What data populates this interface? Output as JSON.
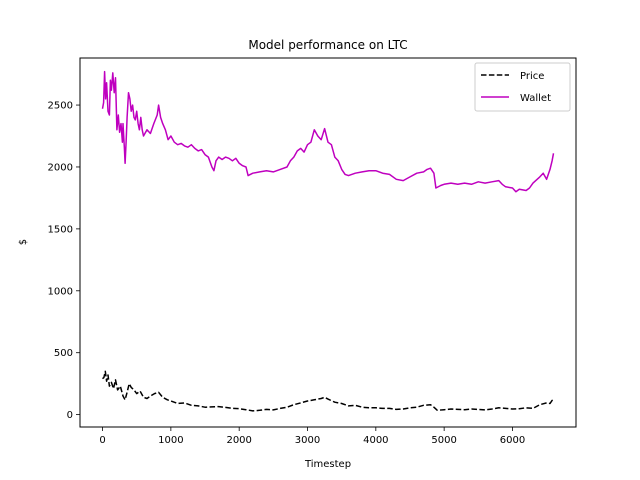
{
  "chart_data": {
    "type": "line",
    "title": "Model performance on LTC",
    "xlabel": "Timestep",
    "ylabel": "$",
    "xlim": [
      -330,
      6930
    ],
    "ylim": [
      -100,
      2880
    ],
    "xticks": [
      0,
      1000,
      2000,
      3000,
      4000,
      5000,
      6000
    ],
    "yticks": [
      0,
      500,
      1000,
      1500,
      2000,
      2500
    ],
    "grid": false,
    "legend": "top-right",
    "series": [
      {
        "name": "Price",
        "color": "#000000",
        "dash": "dashed",
        "points": [
          [
            0,
            290
          ],
          [
            20,
            300
          ],
          [
            40,
            350
          ],
          [
            60,
            270
          ],
          [
            80,
            320
          ],
          [
            100,
            230
          ],
          [
            130,
            260
          ],
          [
            160,
            210
          ],
          [
            190,
            280
          ],
          [
            220,
            200
          ],
          [
            260,
            230
          ],
          [
            300,
            150
          ],
          [
            330,
            120
          ],
          [
            360,
            180
          ],
          [
            390,
            250
          ],
          [
            420,
            220
          ],
          [
            460,
            200
          ],
          [
            500,
            170
          ],
          [
            550,
            190
          ],
          [
            600,
            140
          ],
          [
            650,
            130
          ],
          [
            700,
            150
          ],
          [
            760,
            170
          ],
          [
            820,
            180
          ],
          [
            880,
            140
          ],
          [
            950,
            120
          ],
          [
            1000,
            110
          ],
          [
            1100,
            90
          ],
          [
            1200,
            95
          ],
          [
            1300,
            75
          ],
          [
            1400,
            70
          ],
          [
            1500,
            60
          ],
          [
            1600,
            62
          ],
          [
            1700,
            65
          ],
          [
            1800,
            58
          ],
          [
            1900,
            50
          ],
          [
            2000,
            48
          ],
          [
            2100,
            40
          ],
          [
            2200,
            30
          ],
          [
            2300,
            35
          ],
          [
            2400,
            42
          ],
          [
            2500,
            38
          ],
          [
            2600,
            50
          ],
          [
            2700,
            60
          ],
          [
            2800,
            80
          ],
          [
            2900,
            95
          ],
          [
            3000,
            110
          ],
          [
            3100,
            120
          ],
          [
            3200,
            130
          ],
          [
            3250,
            140
          ],
          [
            3300,
            125
          ],
          [
            3400,
            100
          ],
          [
            3500,
            90
          ],
          [
            3600,
            70
          ],
          [
            3700,
            75
          ],
          [
            3800,
            60
          ],
          [
            3900,
            55
          ],
          [
            4000,
            55
          ],
          [
            4100,
            50
          ],
          [
            4200,
            50
          ],
          [
            4300,
            42
          ],
          [
            4400,
            45
          ],
          [
            4500,
            55
          ],
          [
            4600,
            60
          ],
          [
            4700,
            75
          ],
          [
            4800,
            80
          ],
          [
            4850,
            60
          ],
          [
            4900,
            35
          ],
          [
            5000,
            40
          ],
          [
            5100,
            45
          ],
          [
            5200,
            42
          ],
          [
            5300,
            40
          ],
          [
            5400,
            45
          ],
          [
            5500,
            42
          ],
          [
            5600,
            38
          ],
          [
            5700,
            45
          ],
          [
            5800,
            55
          ],
          [
            5900,
            50
          ],
          [
            6000,
            45
          ],
          [
            6100,
            48
          ],
          [
            6200,
            55
          ],
          [
            6300,
            50
          ],
          [
            6400,
            80
          ],
          [
            6500,
            95
          ],
          [
            6550,
            90
          ],
          [
            6580,
            115
          ],
          [
            6600,
            120
          ]
        ]
      },
      {
        "name": "Wallet",
        "color": "#bf00bf",
        "dash": "solid",
        "points": [
          [
            0,
            2470
          ],
          [
            15,
            2520
          ],
          [
            30,
            2770
          ],
          [
            45,
            2550
          ],
          [
            60,
            2680
          ],
          [
            80,
            2450
          ],
          [
            100,
            2420
          ],
          [
            115,
            2700
          ],
          [
            130,
            2620
          ],
          [
            150,
            2760
          ],
          [
            170,
            2600
          ],
          [
            190,
            2720
          ],
          [
            210,
            2300
          ],
          [
            230,
            2420
          ],
          [
            250,
            2280
          ],
          [
            270,
            2350
          ],
          [
            290,
            2200
          ],
          [
            300,
            2350
          ],
          [
            320,
            2150
          ],
          [
            330,
            2030
          ],
          [
            345,
            2200
          ],
          [
            360,
            2400
          ],
          [
            380,
            2600
          ],
          [
            400,
            2550
          ],
          [
            420,
            2450
          ],
          [
            440,
            2500
          ],
          [
            460,
            2400
          ],
          [
            480,
            2380
          ],
          [
            500,
            2450
          ],
          [
            520,
            2350
          ],
          [
            540,
            2300
          ],
          [
            560,
            2400
          ],
          [
            580,
            2300
          ],
          [
            600,
            2250
          ],
          [
            650,
            2300
          ],
          [
            700,
            2270
          ],
          [
            750,
            2350
          ],
          [
            800,
            2420
          ],
          [
            820,
            2500
          ],
          [
            850,
            2400
          ],
          [
            880,
            2350
          ],
          [
            920,
            2300
          ],
          [
            960,
            2220
          ],
          [
            1000,
            2250
          ],
          [
            1050,
            2200
          ],
          [
            1100,
            2180
          ],
          [
            1150,
            2190
          ],
          [
            1200,
            2170
          ],
          [
            1250,
            2160
          ],
          [
            1300,
            2180
          ],
          [
            1350,
            2150
          ],
          [
            1400,
            2130
          ],
          [
            1450,
            2140
          ],
          [
            1500,
            2100
          ],
          [
            1550,
            2080
          ],
          [
            1600,
            2000
          ],
          [
            1630,
            1970
          ],
          [
            1660,
            2050
          ],
          [
            1700,
            2080
          ],
          [
            1750,
            2060
          ],
          [
            1800,
            2080
          ],
          [
            1850,
            2070
          ],
          [
            1900,
            2050
          ],
          [
            1950,
            2070
          ],
          [
            2000,
            2030
          ],
          [
            2050,
            2010
          ],
          [
            2100,
            2000
          ],
          [
            2130,
            1930
          ],
          [
            2200,
            1950
          ],
          [
            2300,
            1960
          ],
          [
            2400,
            1970
          ],
          [
            2500,
            1960
          ],
          [
            2600,
            1980
          ],
          [
            2700,
            2000
          ],
          [
            2750,
            2050
          ],
          [
            2800,
            2080
          ],
          [
            2850,
            2130
          ],
          [
            2900,
            2150
          ],
          [
            2950,
            2120
          ],
          [
            3000,
            2180
          ],
          [
            3050,
            2200
          ],
          [
            3100,
            2300
          ],
          [
            3150,
            2250
          ],
          [
            3200,
            2220
          ],
          [
            3250,
            2310
          ],
          [
            3300,
            2200
          ],
          [
            3350,
            2180
          ],
          [
            3400,
            2080
          ],
          [
            3450,
            2050
          ],
          [
            3500,
            1980
          ],
          [
            3550,
            1940
          ],
          [
            3600,
            1930
          ],
          [
            3700,
            1950
          ],
          [
            3800,
            1960
          ],
          [
            3900,
            1970
          ],
          [
            4000,
            1970
          ],
          [
            4100,
            1950
          ],
          [
            4200,
            1940
          ],
          [
            4300,
            1900
          ],
          [
            4400,
            1890
          ],
          [
            4500,
            1920
          ],
          [
            4600,
            1950
          ],
          [
            4700,
            1960
          ],
          [
            4750,
            1980
          ],
          [
            4800,
            1990
          ],
          [
            4850,
            1950
          ],
          [
            4880,
            1830
          ],
          [
            4950,
            1850
          ],
          [
            5000,
            1860
          ],
          [
            5100,
            1870
          ],
          [
            5200,
            1860
          ],
          [
            5300,
            1870
          ],
          [
            5400,
            1860
          ],
          [
            5500,
            1880
          ],
          [
            5600,
            1870
          ],
          [
            5700,
            1880
          ],
          [
            5800,
            1890
          ],
          [
            5850,
            1860
          ],
          [
            5900,
            1840
          ],
          [
            6000,
            1830
          ],
          [
            6050,
            1800
          ],
          [
            6100,
            1820
          ],
          [
            6200,
            1810
          ],
          [
            6250,
            1830
          ],
          [
            6300,
            1870
          ],
          [
            6400,
            1920
          ],
          [
            6450,
            1950
          ],
          [
            6500,
            1900
          ],
          [
            6550,
            1980
          ],
          [
            6580,
            2050
          ],
          [
            6600,
            2110
          ]
        ]
      }
    ]
  }
}
